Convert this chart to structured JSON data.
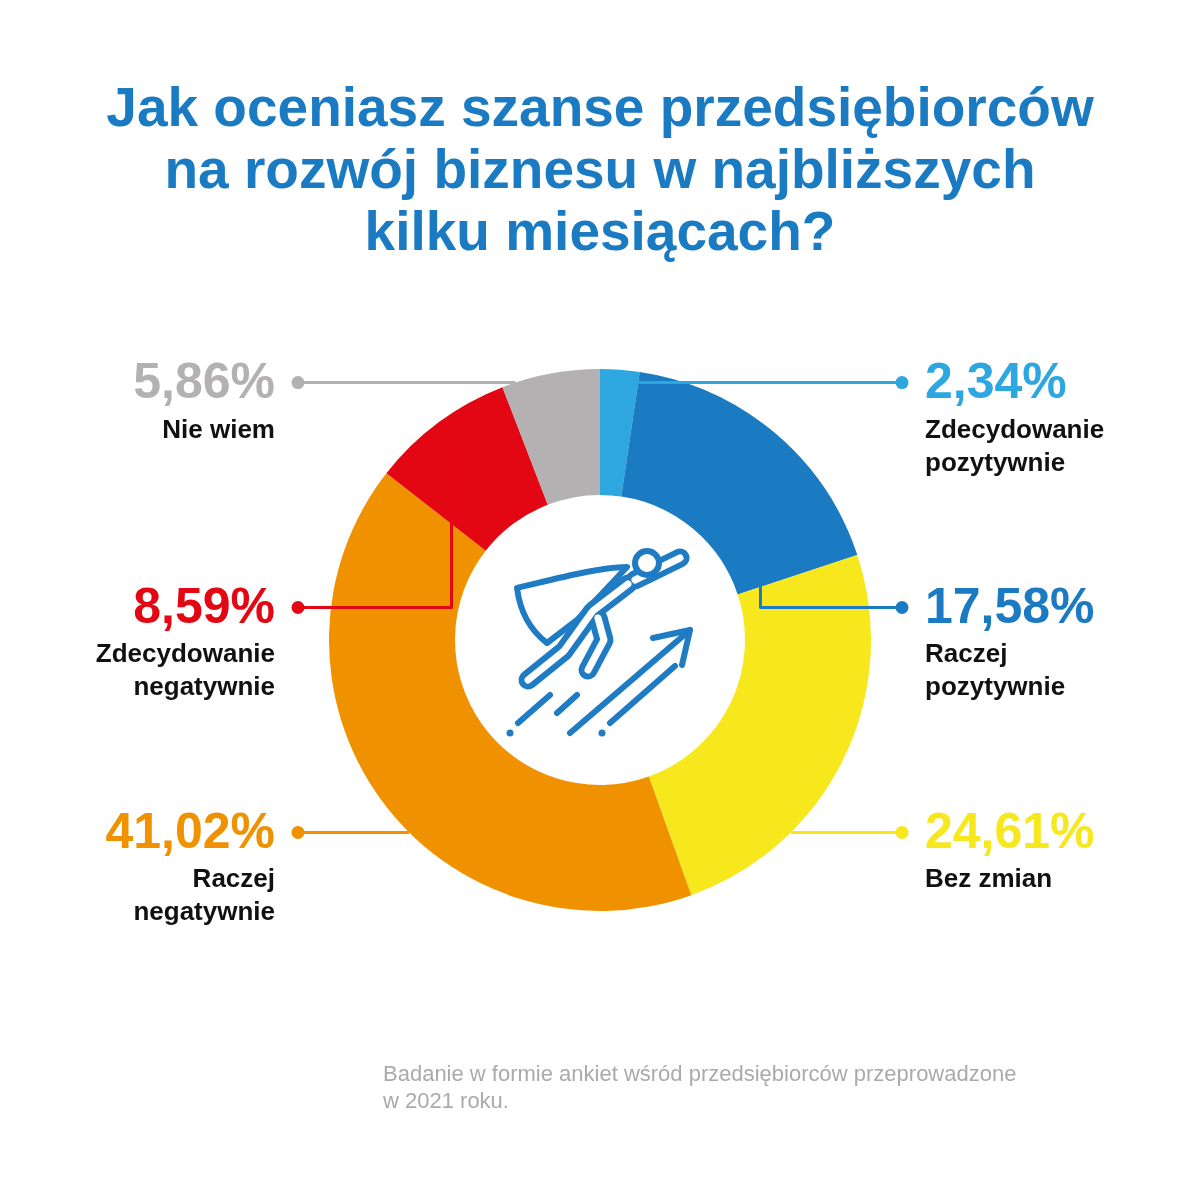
{
  "chart_data": {
    "type": "donut",
    "title": "Jak oceniasz szanse przedsiębiorców na rozwój biznesu w najbliższych kilku miesiącach?",
    "categories": [
      "Zdecydowanie pozytywnie",
      "Raczej pozytywnie",
      "Bez zmian",
      "Raczej negatywnie",
      "Zdecydowanie negatywnie",
      "Nie wiem"
    ],
    "values": [
      2.34,
      17.58,
      24.61,
      41.02,
      8.59,
      5.86
    ],
    "colors": [
      "#2ea7e0",
      "#1b7bc2",
      "#f7e81e",
      "#f09200",
      "#e30713",
      "#b3b1b1"
    ],
    "value_labels": [
      "2,34%",
      "17,58%",
      "24,61%",
      "41,02%",
      "8,59%",
      "5,86%"
    ],
    "legend": "right",
    "annotations": [
      "Badanie w formie ankiet wśród przedsiębiorców przeprowadzone w 2021 roku."
    ]
  }
}
